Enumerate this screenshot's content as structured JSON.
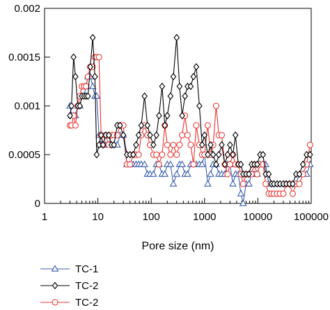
{
  "chart_data": {
    "type": "line",
    "title": "",
    "xlabel": "Pore size (nm)",
    "ylabel": "",
    "xscale": "log",
    "xlim": [
      1,
      100000
    ],
    "ylim": [
      0,
      0.002
    ],
    "grid": false,
    "legend_position": "bottom-left",
    "x_tick_labels": [
      "1",
      "10",
      "100",
      "1000",
      "10000",
      "100000"
    ],
    "y_tick_labels": [
      "0",
      "0.0005",
      "0.001",
      "0.0015",
      "0.002"
    ],
    "series": [
      {
        "name": "TC-1",
        "marker": "triangle",
        "color": "#3a5fb0",
        "points": [
          [
            3.0,
            0.001
          ],
          [
            3.2,
            0.0009
          ],
          [
            3.5,
            0.0009
          ],
          [
            3.8,
            0.0009
          ],
          [
            4.2,
            0.001
          ],
          [
            4.6,
            0.001
          ],
          [
            5.0,
            0.0011
          ],
          [
            5.5,
            0.0011
          ],
          [
            6.0,
            0.0012
          ],
          [
            6.5,
            0.0013
          ],
          [
            7.2,
            0.0013
          ],
          [
            8.0,
            0.0012
          ],
          [
            8.8,
            0.0011
          ],
          [
            9.5,
            0.0011
          ],
          [
            10.5,
            0.0007
          ],
          [
            11.5,
            0.0006
          ],
          [
            12.5,
            0.0006
          ],
          [
            14.0,
            0.0006
          ],
          [
            16.0,
            0.0006
          ],
          [
            18.0,
            0.0006
          ],
          [
            20.0,
            0.0006
          ],
          [
            23.0,
            0.0006
          ],
          [
            26.0,
            0.0007
          ],
          [
            30.0,
            0.0007
          ],
          [
            35.0,
            0.0004
          ],
          [
            40.0,
            0.0004
          ],
          [
            46.0,
            0.0004
          ],
          [
            52.0,
            0.0004
          ],
          [
            58.0,
            0.0004
          ],
          [
            65.0,
            0.0004
          ],
          [
            75.0,
            0.0004
          ],
          [
            85.0,
            0.0003
          ],
          [
            95.0,
            0.0003
          ],
          [
            110.0,
            0.0003
          ],
          [
            125.0,
            0.0004
          ],
          [
            140.0,
            0.0004
          ],
          [
            160.0,
            0.0003
          ],
          [
            180.0,
            0.0003
          ],
          [
            200.0,
            0.0004
          ],
          [
            230.0,
            0.0004
          ],
          [
            260.0,
            0.0002
          ],
          [
            300.0,
            0.0003
          ],
          [
            340.0,
            0.0004
          ],
          [
            380.0,
            0.0004
          ],
          [
            430.0,
            0.0003
          ],
          [
            480.0,
            0.0003
          ],
          [
            550.0,
            0.0004
          ],
          [
            620.0,
            0.0004
          ],
          [
            700.0,
            0.0004
          ],
          [
            800.0,
            0.0004
          ],
          [
            900.0,
            0.0004
          ],
          [
            1000.0,
            0.0005
          ],
          [
            1150.0,
            0.0002
          ],
          [
            1300.0,
            0.0003
          ],
          [
            1450.0,
            0.0004
          ],
          [
            1650.0,
            0.0004
          ],
          [
            1850.0,
            0.0003
          ],
          [
            2100.0,
            0.0003
          ],
          [
            2400.0,
            0.0003
          ],
          [
            2700.0,
            0.0004
          ],
          [
            3000.0,
            0.0004
          ],
          [
            3400.0,
            0.0002
          ],
          [
            3800.0,
            0.0003
          ],
          [
            4300.0,
            0.0003
          ],
          [
            4800.0,
            0.0001
          ],
          [
            5300.0,
            0.0
          ],
          [
            6000.0,
            0.0002
          ],
          [
            6800.0,
            0.0002
          ],
          [
            7600.0,
            0.0003
          ],
          [
            8600.0,
            0.0003
          ],
          [
            9700.0,
            0.0003
          ],
          [
            11000.0,
            0.0004
          ],
          [
            12500.0,
            0.0004
          ],
          [
            14000.0,
            0.0004
          ],
          [
            16000.0,
            0.0002
          ],
          [
            18000.0,
            0.0002
          ],
          [
            20000.0,
            0.0002
          ],
          [
            23000.0,
            0.0002
          ],
          [
            26000.0,
            0.0002
          ],
          [
            30000.0,
            0.0002
          ],
          [
            34000.0,
            0.0002
          ],
          [
            39000.0,
            0.0002
          ],
          [
            45000.0,
            0.0002
          ],
          [
            52000.0,
            0.0002
          ],
          [
            60000.0,
            0.0003
          ],
          [
            70000.0,
            0.0003
          ],
          [
            82000.0,
            0.0003
          ],
          [
            95000.0,
            0.0004
          ]
        ]
      },
      {
        "name": "TC-2",
        "marker": "diamond",
        "color": "#000000",
        "points": [
          [
            3.0,
            0.0009
          ],
          [
            3.2,
            0.001
          ],
          [
            3.5,
            0.0015
          ],
          [
            3.8,
            0.0013
          ],
          [
            4.2,
            0.001
          ],
          [
            4.6,
            0.001
          ],
          [
            5.0,
            0.0011
          ],
          [
            5.5,
            0.0011
          ],
          [
            6.0,
            0.0011
          ],
          [
            6.5,
            0.0011
          ],
          [
            7.2,
            0.0014
          ],
          [
            8.0,
            0.0017
          ],
          [
            8.8,
            0.0013
          ],
          [
            9.5,
            0.0005
          ],
          [
            10.5,
            0.0006
          ],
          [
            11.5,
            0.0007
          ],
          [
            12.5,
            0.0006
          ],
          [
            14.0,
            0.0007
          ],
          [
            16.0,
            0.0007
          ],
          [
            18.0,
            0.0006
          ],
          [
            20.0,
            0.0006
          ],
          [
            23.0,
            0.0008
          ],
          [
            26.0,
            0.0008
          ],
          [
            30.0,
            0.0007
          ],
          [
            35.0,
            0.0005
          ],
          [
            40.0,
            0.0005
          ],
          [
            46.0,
            0.0005
          ],
          [
            52.0,
            0.0006
          ],
          [
            58.0,
            0.0007
          ],
          [
            65.0,
            0.0008
          ],
          [
            75.0,
            0.0011
          ],
          [
            85.0,
            0.0008
          ],
          [
            95.0,
            0.0007
          ],
          [
            110.0,
            0.0006
          ],
          [
            125.0,
            0.0007
          ],
          [
            140.0,
            0.0009
          ],
          [
            160.0,
            0.0012
          ],
          [
            180.0,
            0.0008
          ],
          [
            200.0,
            0.0009
          ],
          [
            230.0,
            0.0011
          ],
          [
            260.0,
            0.0013
          ],
          [
            300.0,
            0.0017
          ],
          [
            340.0,
            0.0012
          ],
          [
            380.0,
            0.0009
          ],
          [
            430.0,
            0.0011
          ],
          [
            480.0,
            0.0012
          ],
          [
            550.0,
            0.0012
          ],
          [
            620.0,
            0.0013
          ],
          [
            700.0,
            0.0014
          ],
          [
            800.0,
            0.001
          ],
          [
            900.0,
            0.0006
          ],
          [
            1000.0,
            0.0007
          ],
          [
            1150.0,
            0.0005
          ],
          [
            1300.0,
            0.0006
          ],
          [
            1450.0,
            0.0005
          ],
          [
            1650.0,
            0.0004
          ],
          [
            1850.0,
            0.0005
          ],
          [
            2100.0,
            0.0006
          ],
          [
            2400.0,
            0.0004
          ],
          [
            2700.0,
            0.0005
          ],
          [
            3000.0,
            0.0006
          ],
          [
            3400.0,
            0.0005
          ],
          [
            3800.0,
            0.0007
          ],
          [
            4300.0,
            0.0004
          ],
          [
            4800.0,
            0.0004
          ],
          [
            5300.0,
            0.0003
          ],
          [
            6000.0,
            0.0003
          ],
          [
            6800.0,
            0.0003
          ],
          [
            7600.0,
            0.0004
          ],
          [
            8600.0,
            0.0004
          ],
          [
            9700.0,
            0.0004
          ],
          [
            11000.0,
            0.0005
          ],
          [
            12500.0,
            0.0005
          ],
          [
            14000.0,
            0.0003
          ],
          [
            16000.0,
            0.0003
          ],
          [
            18000.0,
            0.0002
          ],
          [
            20000.0,
            0.0002
          ],
          [
            23000.0,
            0.0002
          ],
          [
            26000.0,
            0.0002
          ],
          [
            30000.0,
            0.0002
          ],
          [
            34000.0,
            0.0002
          ],
          [
            39000.0,
            0.0002
          ],
          [
            45000.0,
            0.0002
          ],
          [
            52000.0,
            0.0003
          ],
          [
            60000.0,
            0.0003
          ],
          [
            70000.0,
            0.0004
          ],
          [
            82000.0,
            0.0005
          ],
          [
            95000.0,
            0.0005
          ]
        ]
      },
      {
        "name": "TC-2",
        "marker": "circle",
        "color": "#e8322e",
        "points": [
          [
            3.0,
            0.0008
          ],
          [
            3.2,
            0.0008
          ],
          [
            3.5,
            0.0009
          ],
          [
            3.8,
            0.0008
          ],
          [
            4.2,
            0.001
          ],
          [
            4.6,
            0.0011
          ],
          [
            5.0,
            0.0012
          ],
          [
            5.5,
            0.0012
          ],
          [
            6.0,
            0.0012
          ],
          [
            6.5,
            0.0013
          ],
          [
            7.2,
            0.0014
          ],
          [
            8.0,
            0.0014
          ],
          [
            8.8,
            0.0015
          ],
          [
            9.5,
            0.0015
          ],
          [
            10.5,
            0.0015
          ],
          [
            11.5,
            0.0007
          ],
          [
            12.5,
            0.0006
          ],
          [
            14.0,
            0.0007
          ],
          [
            16.0,
            0.0006
          ],
          [
            18.0,
            0.0007
          ],
          [
            20.0,
            0.0007
          ],
          [
            23.0,
            0.0007
          ],
          [
            26.0,
            0.0008
          ],
          [
            30.0,
            0.0008
          ],
          [
            35.0,
            0.0004
          ],
          [
            40.0,
            0.0004
          ],
          [
            46.0,
            0.0005
          ],
          [
            52.0,
            0.0005
          ],
          [
            58.0,
            0.0005
          ],
          [
            65.0,
            0.0007
          ],
          [
            75.0,
            0.0008
          ],
          [
            85.0,
            0.0007
          ],
          [
            95.0,
            0.0006
          ],
          [
            110.0,
            0.0005
          ],
          [
            125.0,
            0.0005
          ],
          [
            140.0,
            0.0004
          ],
          [
            160.0,
            0.0005
          ],
          [
            180.0,
            0.0008
          ],
          [
            200.0,
            0.0006
          ],
          [
            230.0,
            0.0005
          ],
          [
            260.0,
            0.0006
          ],
          [
            300.0,
            0.0005
          ],
          [
            340.0,
            0.0006
          ],
          [
            380.0,
            0.0007
          ],
          [
            430.0,
            0.0009
          ],
          [
            480.0,
            0.0007
          ],
          [
            550.0,
            0.0006
          ],
          [
            620.0,
            0.0004
          ],
          [
            700.0,
            0.0008
          ],
          [
            800.0,
            0.0006
          ],
          [
            900.0,
            0.0005
          ],
          [
            1000.0,
            0.0005
          ],
          [
            1150.0,
            0.0008
          ],
          [
            1300.0,
            0.0005
          ],
          [
            1450.0,
            0.0006
          ],
          [
            1650.0,
            0.001
          ],
          [
            1850.0,
            0.0007
          ],
          [
            2100.0,
            0.0007
          ],
          [
            2400.0,
            0.0004
          ],
          [
            2700.0,
            0.0003
          ],
          [
            3000.0,
            0.0004
          ],
          [
            3400.0,
            0.0005
          ],
          [
            3800.0,
            0.0004
          ],
          [
            4300.0,
            0.0004
          ],
          [
            4800.0,
            0.0003
          ],
          [
            5300.0,
            0.0002
          ],
          [
            6000.0,
            0.0003
          ],
          [
            6800.0,
            0.0003
          ],
          [
            7600.0,
            0.0003
          ],
          [
            8600.0,
            0.0004
          ],
          [
            9700.0,
            0.0003
          ],
          [
            11000.0,
            0.0004
          ],
          [
            12500.0,
            0.0004
          ],
          [
            14000.0,
            0.0002
          ],
          [
            16000.0,
            0.0001
          ],
          [
            18000.0,
            0.0001
          ],
          [
            20000.0,
            0.0001
          ],
          [
            23000.0,
            0.0001
          ],
          [
            26000.0,
            0.0001
          ],
          [
            30000.0,
            0.0001
          ],
          [
            34000.0,
            0.0002
          ],
          [
            39000.0,
            0.0002
          ],
          [
            45000.0,
            0.0001
          ],
          [
            52000.0,
            0.0002
          ],
          [
            60000.0,
            0.0002
          ],
          [
            70000.0,
            0.0003
          ],
          [
            82000.0,
            0.0004
          ],
          [
            95000.0,
            0.0006
          ]
        ]
      }
    ]
  }
}
